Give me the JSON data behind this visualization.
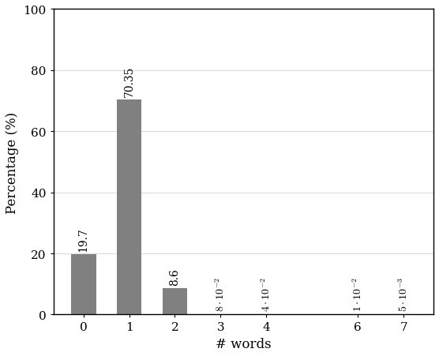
{
  "categories": [
    0,
    1,
    2,
    3,
    4,
    6,
    7
  ],
  "values": [
    19.7,
    70.35,
    8.6,
    0.08,
    0.04,
    0.01,
    0.005
  ],
  "bar_color": "#808080",
  "xlabel": "# words",
  "ylabel": "Percentage (%)",
  "ylim": [
    0,
    100
  ],
  "yticks": [
    0,
    20,
    40,
    60,
    80,
    100
  ],
  "xticks": [
    0,
    1,
    2,
    3,
    4,
    6,
    7
  ],
  "label_offsets": [
    1.2,
    1.2,
    1.2,
    1.2,
    1.2,
    1.2,
    1.2
  ],
  "figsize": [
    5.56,
    4.52
  ],
  "dpi": 100
}
